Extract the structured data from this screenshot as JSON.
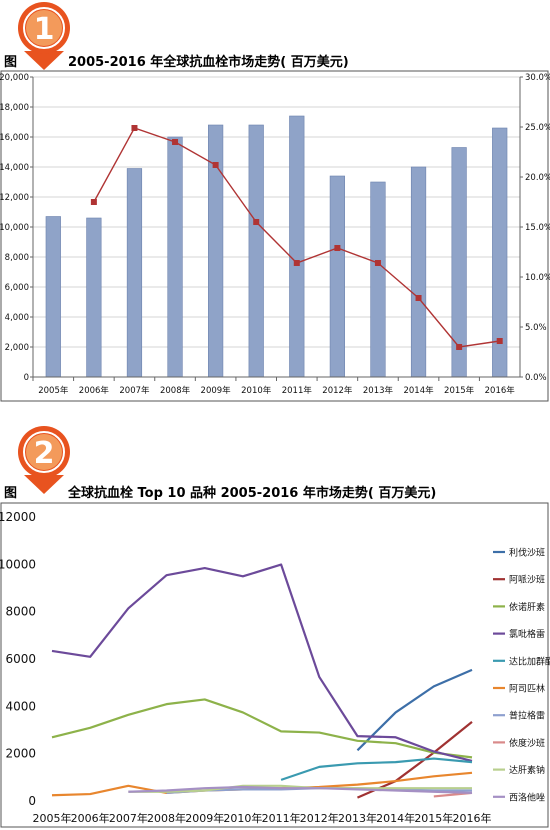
{
  "badge_colors": {
    "outer": "#e8531f",
    "inner": "#f39a5b",
    "ring": "#ffffff"
  },
  "chart_data": [
    {
      "type": "bar",
      "badge": "1",
      "title_prefix": "图",
      "title": "2005-2016 年全球抗血栓市场走势( 百万美元)",
      "categories": [
        "2005年",
        "2006年",
        "2007年",
        "2008年",
        "2009年",
        "2010年",
        "2011年",
        "2012年",
        "2013年",
        "2014年",
        "2015年",
        "2016年"
      ],
      "series": [
        {
          "type": "bar",
          "axis": "left",
          "values": [
            10700,
            10600,
            13900,
            16000,
            16800,
            16800,
            17400,
            13400,
            13000,
            14000,
            15300,
            16600
          ]
        },
        {
          "type": "line",
          "axis": "right",
          "values": [
            null,
            17.5,
            24.9,
            23.5,
            21.2,
            15.5,
            11.4,
            12.9,
            11.4,
            7.9,
            3.0,
            3.6
          ]
        }
      ],
      "y_left": {
        "min": 0,
        "max": 20000,
        "step": 2000,
        "tick_labels": [
          "0",
          "2,000",
          "4,000",
          "6,000",
          "8,000",
          "10,000",
          "12,000",
          "14,000",
          "16,000",
          "18,000",
          "20,000"
        ]
      },
      "y_right": {
        "min": 0,
        "max": 30,
        "step": 5,
        "tick_labels": [
          "0.0%",
          "5.0%",
          "10.0%",
          "15.0%",
          "20.0%",
          "25.0%",
          "30.0%"
        ]
      },
      "grid": true,
      "colors": {
        "bar": "#8fa3c8",
        "bar_edge": "#6c82ad",
        "line": "#b03434"
      }
    },
    {
      "type": "line",
      "badge": "2",
      "title_prefix": "图",
      "title": "全球抗血栓 Top  10 品种 2005-2016 年市场走势( 百万美元)",
      "categories": [
        "2005年",
        "2006年",
        "2007年",
        "2008年",
        "2009年",
        "2010年",
        "2011年",
        "2012年",
        "2013年",
        "2014年",
        "2015年",
        "2016年"
      ],
      "y": {
        "min": 0,
        "max": 12000,
        "step": 2000,
        "tick_labels": [
          "0",
          "2000",
          "4000",
          "6000",
          "8000",
          "10000",
          "12000"
        ]
      },
      "grid": false,
      "legend_position": "right",
      "series": [
        {
          "name": "利伐沙班",
          "color": "#3d6fa8",
          "values": [
            null,
            null,
            null,
            null,
            null,
            null,
            null,
            null,
            2100,
            3700,
            4800,
            5500
          ]
        },
        {
          "name": "阿哌沙班",
          "color": "#a03232",
          "values": [
            null,
            null,
            null,
            null,
            null,
            null,
            null,
            null,
            100,
            800,
            2000,
            3300
          ]
        },
        {
          "name": "依诺肝素",
          "color": "#8db24a",
          "values": [
            2650,
            3050,
            3600,
            4050,
            4250,
            3700,
            2900,
            2850,
            2500,
            2400,
            2000,
            1800
          ]
        },
        {
          "name": "氯吡格雷",
          "color": "#6c4a9a",
          "values": [
            6300,
            6050,
            8100,
            9500,
            9800,
            9450,
            9950,
            5200,
            2700,
            2650,
            2050,
            1650
          ]
        },
        {
          "name": "达比加群酯",
          "color": "#3a9ab0",
          "values": [
            null,
            null,
            null,
            null,
            null,
            null,
            850,
            1400,
            1550,
            1600,
            1750,
            1600
          ]
        },
        {
          "name": "阿司匹林",
          "color": "#e8862e",
          "values": [
            200,
            250,
            600,
            300,
            400,
            450,
            500,
            550,
            650,
            800,
            1000,
            1150
          ]
        },
        {
          "name": "普拉格雷",
          "color": "#8ea0cf",
          "values": [
            null,
            null,
            null,
            300,
            400,
            450,
            450,
            500,
            500,
            450,
            400,
            400
          ]
        },
        {
          "name": "依度沙班",
          "color": "#d98a8a",
          "values": [
            null,
            null,
            null,
            null,
            null,
            null,
            null,
            null,
            null,
            null,
            150,
            300
          ]
        },
        {
          "name": "达肝素钠",
          "color": "#b8cf8e",
          "values": [
            null,
            null,
            350,
            350,
            400,
            600,
            600,
            500,
            500,
            500,
            500,
            500
          ]
        },
        {
          "name": "西洛他唑",
          "color": "#a590c4",
          "values": [
            null,
            null,
            350,
            400,
            500,
            550,
            500,
            500,
            450,
            400,
            350,
            300
          ]
        }
      ]
    }
  ]
}
